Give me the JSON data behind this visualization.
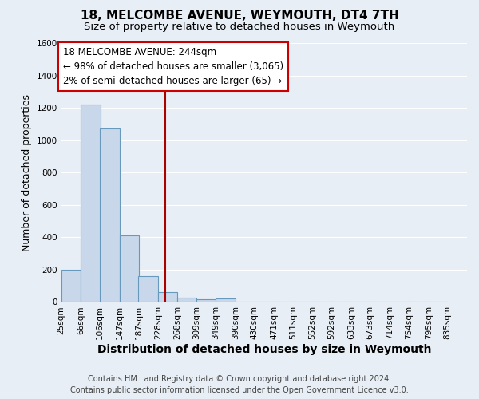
{
  "title": "18, MELCOMBE AVENUE, WEYMOUTH, DT4 7TH",
  "subtitle": "Size of property relative to detached houses in Weymouth",
  "xlabel": "Distribution of detached houses by size in Weymouth",
  "ylabel": "Number of detached properties",
  "bin_labels": [
    "25sqm",
    "66sqm",
    "106sqm",
    "147sqm",
    "187sqm",
    "228sqm",
    "268sqm",
    "309sqm",
    "349sqm",
    "390sqm",
    "430sqm",
    "471sqm",
    "511sqm",
    "552sqm",
    "592sqm",
    "633sqm",
    "673sqm",
    "714sqm",
    "754sqm",
    "795sqm",
    "835sqm"
  ],
  "bin_edges": [
    25,
    66,
    106,
    147,
    187,
    228,
    268,
    309,
    349,
    390,
    430,
    471,
    511,
    552,
    592,
    633,
    673,
    714,
    754,
    795,
    835
  ],
  "bar_heights": [
    200,
    1220,
    1070,
    410,
    160,
    60,
    25,
    15,
    20,
    0,
    0,
    0,
    0,
    0,
    0,
    0,
    0,
    0,
    0,
    0
  ],
  "bar_color": "#c8d8ea",
  "bar_edge_color": "#6699bb",
  "property_value": 244,
  "vline_color": "#aa0000",
  "ylim": [
    0,
    1600
  ],
  "yticks": [
    0,
    200,
    400,
    600,
    800,
    1000,
    1200,
    1400,
    1600
  ],
  "annotation_title": "18 MELCOMBE AVENUE: 244sqm",
  "annotation_line1": "← 98% of detached houses are smaller (3,065)",
  "annotation_line2": "2% of semi-detached houses are larger (65) →",
  "annotation_box_facecolor": "#ffffff",
  "annotation_box_edgecolor": "#cc0000",
  "footer1": "Contains HM Land Registry data © Crown copyright and database right 2024.",
  "footer2": "Contains public sector information licensed under the Open Government Licence v3.0.",
  "background_color": "#e8eef5",
  "grid_color": "#ffffff",
  "title_fontsize": 11,
  "subtitle_fontsize": 9.5,
  "xlabel_fontsize": 10,
  "ylabel_fontsize": 9,
  "tick_fontsize": 7.5,
  "annotation_fontsize": 8.5,
  "footer_fontsize": 7
}
